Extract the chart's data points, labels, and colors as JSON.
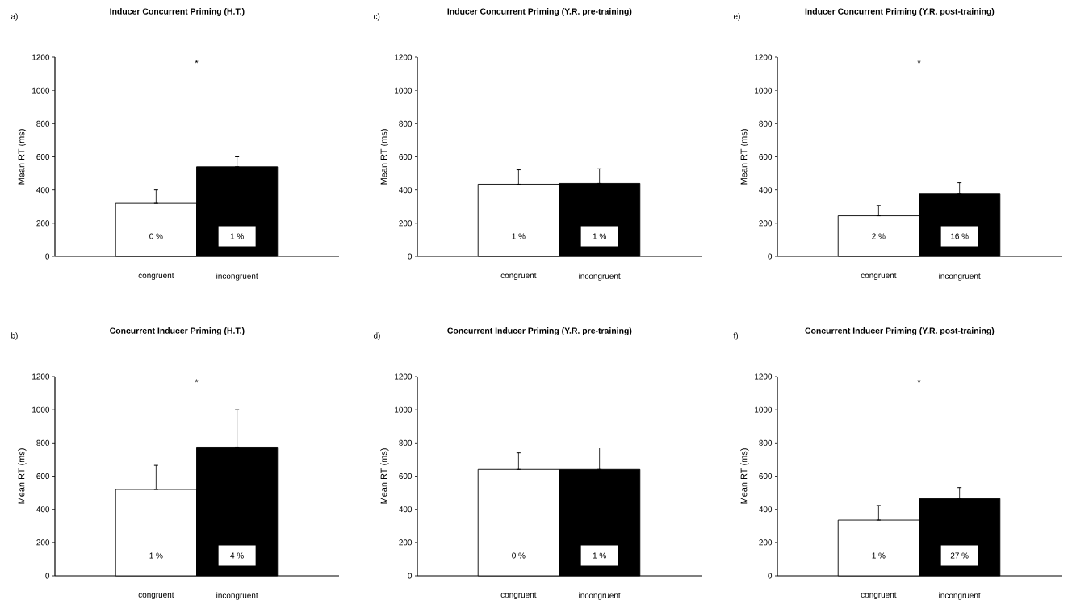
{
  "chart_data": [
    {
      "type": "bar",
      "title": "Inducer Concurrent Priming (H.T.)",
      "ylabel": "Mean RT (ms)",
      "categories": [
        "congruent",
        "incongruent"
      ],
      "values": [
        320,
        540
      ],
      "colors": [
        "#ffffff",
        "#000000"
      ],
      "errors": [
        [
          320,
          400
        ],
        [
          540,
          600
        ]
      ],
      "ylim": [
        0,
        1200
      ],
      "yticks": [
        0,
        200,
        400,
        600,
        800,
        1000,
        1200
      ],
      "annotations": [
        "a)",
        "*",
        "0 %",
        "1 %"
      ]
    },
    {
      "type": "bar",
      "title": "Inducer Concurrent Priming (Y.R. pre-training)",
      "ylabel": "Mean RT (ms)",
      "categories": [
        "congruent",
        "incongruent"
      ],
      "values": [
        435,
        440
      ],
      "colors": [
        "#ffffff",
        "#000000"
      ],
      "errors": [
        [
          435,
          522
        ],
        [
          440,
          528
        ]
      ],
      "ylim": [
        0,
        1200
      ],
      "yticks": [
        0,
        200,
        400,
        600,
        800,
        1000,
        1200
      ],
      "annotations": [
        "c)",
        "1 %",
        "1 %"
      ]
    },
    {
      "type": "bar",
      "title": "Inducer Concurrent Priming (Y.R. post-training)",
      "ylabel": "Mean RT (ms)",
      "categories": [
        "congruent",
        "incongruent"
      ],
      "values": [
        245,
        380
      ],
      "colors": [
        "#ffffff",
        "#000000"
      ],
      "errors": [
        [
          245,
          307
        ],
        [
          380,
          444
        ]
      ],
      "ylim": [
        0,
        1200
      ],
      "yticks": [
        0,
        200,
        400,
        600,
        800,
        1000,
        1200
      ],
      "annotations": [
        "e)",
        "*",
        "2 %",
        "16 %"
      ]
    },
    {
      "type": "bar",
      "title": "Concurrent Inducer Priming (H.T.)",
      "ylabel": "Mean RT (ms)",
      "categories": [
        "congruent",
        "incongruent"
      ],
      "values": [
        520,
        775
      ],
      "colors": [
        "#ffffff",
        "#000000"
      ],
      "errors": [
        [
          520,
          665
        ],
        [
          775,
          1000
        ]
      ],
      "ylim": [
        0,
        1200
      ],
      "yticks": [
        0,
        200,
        400,
        600,
        800,
        1000,
        1200
      ],
      "annotations": [
        "b)",
        "*",
        "1 %",
        "4 %"
      ]
    },
    {
      "type": "bar",
      "title": "Concurrent Inducer Priming (Y.R. pre-training)",
      "ylabel": "Mean RT (ms)",
      "categories": [
        "congruent",
        "incongruent"
      ],
      "values": [
        640,
        640
      ],
      "colors": [
        "#ffffff",
        "#000000"
      ],
      "errors": [
        [
          640,
          740
        ],
        [
          640,
          770
        ]
      ],
      "ylim": [
        0,
        1200
      ],
      "yticks": [
        0,
        200,
        400,
        600,
        800,
        1000,
        1200
      ],
      "annotations": [
        "d)",
        "0 %",
        "1 %"
      ]
    },
    {
      "type": "bar",
      "title": "Concurrent Inducer Priming (Y.R. post-training)",
      "ylabel": "Mean RT (ms)",
      "categories": [
        "congruent",
        "incongruent"
      ],
      "values": [
        335,
        465
      ],
      "colors": [
        "#ffffff",
        "#000000"
      ],
      "errors": [
        [
          335,
          423
        ],
        [
          465,
          531
        ]
      ],
      "ylim": [
        0,
        1200
      ],
      "yticks": [
        0,
        200,
        400,
        600,
        800,
        1000,
        1200
      ],
      "annotations": [
        "f)",
        "*",
        "1 %",
        "27 %"
      ]
    }
  ]
}
